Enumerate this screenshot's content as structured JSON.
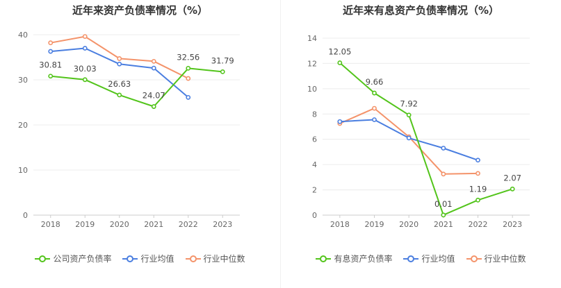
{
  "chart_data": [
    {
      "type": "line",
      "title": "近年来资产负债率情况（%）",
      "categories": [
        "2018",
        "2019",
        "2020",
        "2021",
        "2022",
        "2023"
      ],
      "ylim": [
        0,
        40
      ],
      "yticks": [
        0,
        10,
        20,
        30,
        40
      ],
      "grid": true,
      "legend_placement": "bottom",
      "series": [
        {
          "name": "公司资产负债率",
          "color": "#52c41a",
          "labeled": true,
          "values": [
            30.81,
            30.03,
            26.63,
            24.07,
            32.56,
            31.79
          ]
        },
        {
          "name": "行业均值",
          "color": "#4a7ee0",
          "labeled": false,
          "values": [
            36.3,
            37.0,
            33.5,
            32.6,
            26.1,
            null
          ]
        },
        {
          "name": "行业中位数",
          "color": "#f4936a",
          "labeled": false,
          "values": [
            38.2,
            39.6,
            34.7,
            34.1,
            30.3,
            null
          ]
        }
      ],
      "data_labels": [
        "30.81",
        "30.03",
        "26.63",
        "24.07",
        "32.56",
        "31.79"
      ]
    },
    {
      "type": "line",
      "title": "近年来有息资产负债率情况（%）",
      "categories": [
        "2018",
        "2019",
        "2020",
        "2021",
        "2022",
        "2023"
      ],
      "ylim": [
        0,
        14
      ],
      "yticks": [
        0,
        2,
        4,
        6,
        8,
        10,
        12,
        14
      ],
      "grid": true,
      "legend_placement": "bottom",
      "series": [
        {
          "name": "有息资产负债率",
          "color": "#52c41a",
          "labeled": true,
          "values": [
            12.05,
            9.66,
            7.92,
            0.01,
            1.19,
            2.07
          ]
        },
        {
          "name": "行业均值",
          "color": "#4a7ee0",
          "labeled": false,
          "values": [
            7.4,
            7.55,
            6.1,
            5.3,
            4.35,
            null
          ]
        },
        {
          "name": "行业中位数",
          "color": "#f4936a",
          "labeled": false,
          "values": [
            7.25,
            8.45,
            6.2,
            3.25,
            3.3,
            null
          ]
        }
      ],
      "data_labels": [
        "12.05",
        "9.66",
        "7.92",
        "0.01",
        "1.19",
        "2.07"
      ]
    }
  ]
}
